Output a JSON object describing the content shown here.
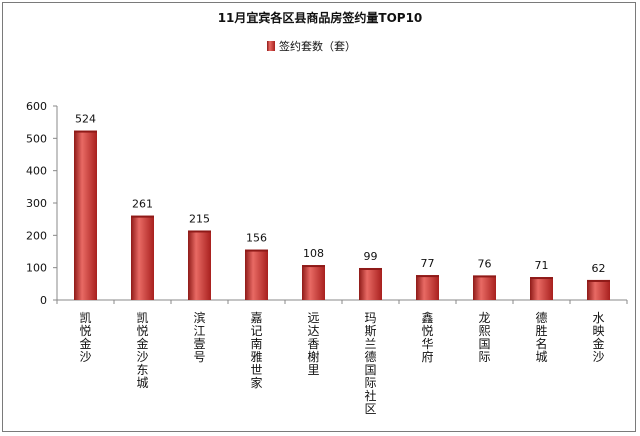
{
  "chart_data": {
    "type": "bar",
    "title": "11月宜宾各区县商品房签约量TOP10",
    "legend": "签约套数（套）",
    "categories": [
      "凯悦金沙",
      "凯悦金沙东城",
      "滨江壹号",
      "嘉记南雅世家",
      "远达香榭里",
      "玛斯兰德国际社区",
      "鑫悦华府",
      "龙熙国际",
      "德胜名城",
      "水映金沙"
    ],
    "values": [
      524,
      261,
      215,
      156,
      108,
      99,
      77,
      76,
      71,
      62
    ],
    "ylim": [
      0,
      600
    ],
    "yticks": [
      0,
      100,
      200,
      300,
      400,
      500,
      600
    ],
    "grid": false,
    "legend_position": "top",
    "colors": {
      "bar": "#c8302e",
      "bar_dark": "#8e1a18",
      "bar_light": "#e86a64",
      "axis": "#888888"
    }
  }
}
